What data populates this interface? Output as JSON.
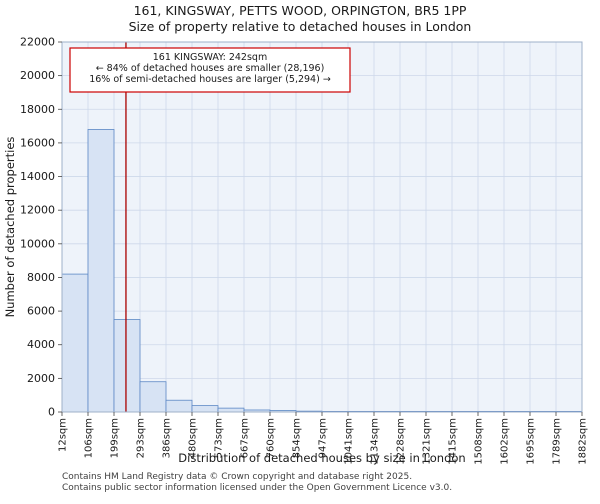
{
  "chart_data": {
    "type": "bar",
    "title": "161, KINGSWAY, PETTS WOOD, ORPINGTON, BR5 1PP",
    "subtitle": "Size of property relative to detached houses in London",
    "xlabel": "Distribution of detached houses by size in London",
    "ylabel": "Number of detached properties",
    "x_min": 12,
    "x_max": 1882,
    "bin_width_sqm": 93.5,
    "categories": [
      "12sqm",
      "106sqm",
      "199sqm",
      "293sqm",
      "386sqm",
      "480sqm",
      "573sqm",
      "667sqm",
      "760sqm",
      "854sqm",
      "947sqm",
      "1041sqm",
      "1134sqm",
      "1228sqm",
      "1321sqm",
      "1415sqm",
      "1508sqm",
      "1602sqm",
      "1695sqm",
      "1789sqm",
      "1882sqm"
    ],
    "values": [
      8200,
      16800,
      5500,
      1800,
      700,
      380,
      230,
      120,
      90,
      50,
      30,
      20,
      12,
      8,
      6,
      5,
      4,
      3,
      2,
      2
    ],
    "ylim": [
      0,
      22000
    ],
    "ytick_step": 2000,
    "grid": true,
    "bar_fill": "#d7e3f4",
    "bar_edge": "#5c88c5"
  },
  "marker": {
    "label": "161 KINGSWAY",
    "value_sqm": 242,
    "color": "#aa0000"
  },
  "annotation": {
    "line1": "161 KINGSWAY: 242sqm",
    "line2": "← 84% of detached houses are smaller (28,196)",
    "line3": "16% of semi-detached houses are larger (5,294) →",
    "border_color": "#cc0000"
  },
  "footer": {
    "line1": "Contains HM Land Registry data © Crown copyright and database right 2025.",
    "line2": "Contains public sector information licensed under the Open Government Licence v3.0."
  }
}
